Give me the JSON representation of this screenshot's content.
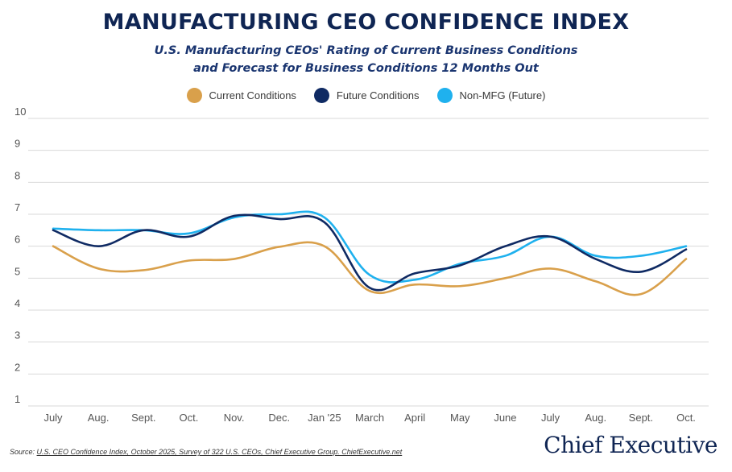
{
  "header": {
    "title": "MANUFACTURING CEO CONFIDENCE INDEX",
    "subtitle_line1": "U.S. Manufacturing CEOs' Rating of Current Business Conditions",
    "subtitle_line2": "and Forecast for Business Conditions 12 Months Out"
  },
  "footer": {
    "source_prefix": "Source: ",
    "source_text": "U.S. CEO Confidence Index, October 2025, Survey of 322 U.S. CEOs, Chief Executive Group. ChiefExecutive.net",
    "brand": "Chief Executive"
  },
  "colors": {
    "current": "#d9a04b",
    "future": "#0f2a63",
    "nonmfg": "#1fb1ee",
    "grid": "#d9d9d9",
    "tick": "#555555"
  },
  "chart_data": {
    "type": "line",
    "title": "MANUFACTURING CEO CONFIDENCE INDEX",
    "categories": [
      "July",
      "Aug.",
      "Sept.",
      "Oct.",
      "Nov.",
      "Dec.",
      "Jan '25",
      "March",
      "April",
      "May",
      "June",
      "July",
      "Aug.",
      "Sept.",
      "Oct."
    ],
    "yticks": [
      "1",
      "2",
      "3",
      "4",
      "5",
      "6",
      "7",
      "8",
      "9",
      "10"
    ],
    "ylim": [
      1,
      10
    ],
    "grid": true,
    "legend_position": "top-center",
    "series": [
      {
        "name": "Current Conditions",
        "color_key": "current",
        "values": [
          6.0,
          5.3,
          5.25,
          5.55,
          5.6,
          5.98,
          6.0,
          4.6,
          4.8,
          4.75,
          5.0,
          5.3,
          4.9,
          4.5,
          5.6
        ]
      },
      {
        "name": "Future Conditions",
        "color_key": "future",
        "values": [
          6.5,
          6.0,
          6.5,
          6.3,
          6.95,
          6.85,
          6.75,
          4.7,
          5.15,
          5.4,
          6.0,
          6.3,
          5.6,
          5.2,
          5.9
        ]
      },
      {
        "name": "Non-MFG (Future)",
        "color_key": "nonmfg",
        "values": [
          6.55,
          6.5,
          6.5,
          6.4,
          6.9,
          7.0,
          6.9,
          5.1,
          4.95,
          5.45,
          5.7,
          6.3,
          5.7,
          5.7,
          6.0
        ]
      }
    ]
  }
}
